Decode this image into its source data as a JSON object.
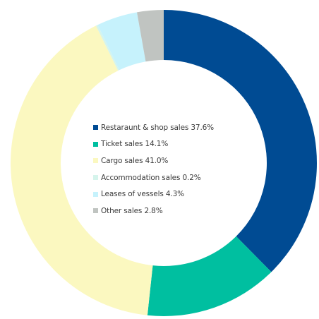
{
  "chart_data": {
    "type": "pie",
    "variant": "donut",
    "start_angle_deg": 0,
    "direction": "clockwise",
    "legend_position": "center",
    "slices": [
      {
        "label": "Restaraunt & shop sales",
        "value": 37.6,
        "display": "37.6%",
        "color": "#004B93"
      },
      {
        "label": "Ticket sales",
        "value": 14.1,
        "display": "14.1%",
        "color": "#00BFA0"
      },
      {
        "label": "Cargo sales",
        "value": 41.0,
        "display": "41.0%",
        "color": "#FBF8C0"
      },
      {
        "label": "Accommodation sales",
        "value": 0.2,
        "display": "0.2%",
        "color": "#D5F4EC"
      },
      {
        "label": "Leases of vessels",
        "value": 4.3,
        "display": "4.3%",
        "color": "#C6F2FC"
      },
      {
        "label": "Other sales",
        "value": 2.8,
        "display": "2.8%",
        "color": "#C0C4C1"
      }
    ]
  }
}
